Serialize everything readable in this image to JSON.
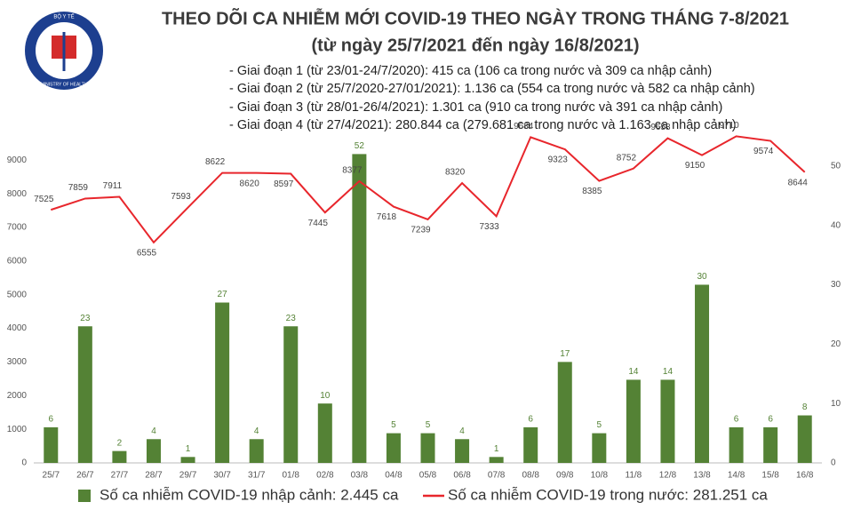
{
  "logo": {
    "top": "BỘ Y TẾ",
    "bottom": "MINISTRY OF HEALTH"
  },
  "chart_data": {
    "type": "bar-line",
    "title": "THEO DÕI CA NHIỄM MỚI COVID-19 THEO NGÀY TRONG THÁNG 7-8/2021",
    "subtitle": "(từ ngày 25/7/2021 đến ngày 16/8/2021)",
    "notes": [
      "- Giai đoạn 1 (từ 23/01-24/7/2020): 415 ca (106 ca trong nước và 309 ca nhập cảnh)",
      "- Giai đoạn 2 (từ 25/7/2020-27/01/2021): 1.136 ca (554 ca trong nước và 582 ca nhập cảnh)",
      "- Giai đoạn 3 (từ 28/01-26/4/2021): 1.301 ca (910 ca trong nước và 391 ca nhập cảnh)",
      "- Giai đoạn 4 (từ 27/4/2021): 280.844 ca (279.681 ca trong nước và 1.163 ca nhập cảnh)"
    ],
    "categories": [
      "25/7",
      "26/7",
      "27/7",
      "28/7",
      "29/7",
      "30/7",
      "31/7",
      "01/8",
      "02/8",
      "03/8",
      "04/8",
      "05/8",
      "06/8",
      "07/8",
      "08/8",
      "09/8",
      "10/8",
      "11/8",
      "12/8",
      "13/8",
      "14/8",
      "15/8",
      "16/8"
    ],
    "series": [
      {
        "name": "Số ca nhiễm COVID-19 nhập cảnh: 2.445 ca",
        "type": "bar",
        "axis": "y2",
        "color": "#548235",
        "values": [
          6,
          23,
          2,
          4,
          1,
          27,
          4,
          23,
          10,
          52,
          5,
          5,
          4,
          1,
          6,
          17,
          5,
          14,
          14,
          30,
          6,
          6,
          8
        ]
      },
      {
        "name": "Số ca nhiễm COVID-19 trong nước: 281.251 ca",
        "type": "line",
        "color": "#e8262c",
        "values": [
          7525,
          7859,
          7911,
          6555,
          7593,
          8622,
          8620,
          8597,
          7445,
          8377,
          7618,
          7239,
          8320,
          7333,
          9684,
          9323,
          8385,
          8752,
          9653,
          9150,
          9710,
          9574,
          8644
        ]
      }
    ],
    "ylim": [
      0,
      9800
    ],
    "yticks": [
      0,
      1000,
      2000,
      3000,
      4000,
      5000,
      6000,
      7000,
      8000,
      9000
    ],
    "y2lim": [
      0,
      55.5
    ],
    "y2ticks": [
      0,
      10,
      20,
      30,
      40,
      50
    ],
    "grid": false,
    "legend": "bottom"
  }
}
